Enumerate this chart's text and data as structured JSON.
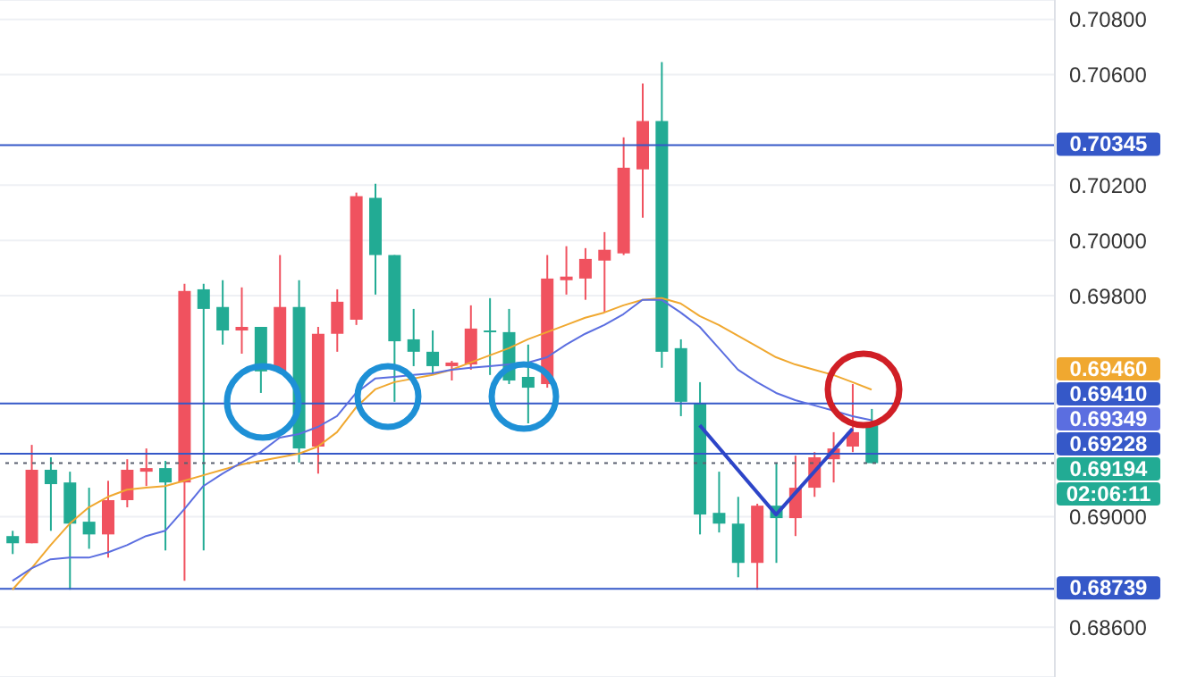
{
  "chart_data": {
    "type": "candlestick",
    "categories": [
      null,
      null,
      null,
      null,
      null,
      null,
      null,
      null,
      null,
      null,
      null,
      null,
      null,
      null,
      null,
      null,
      null,
      null,
      null,
      null,
      null,
      null,
      null,
      null,
      null,
      null,
      null,
      null,
      null,
      null,
      null,
      null,
      null,
      null,
      null,
      null,
      null,
      null,
      null,
      null,
      null,
      null,
      null,
      null,
      null,
      null
    ],
    "ohlc": [
      [
        0.6893,
        0.68949,
        0.68865,
        0.68904
      ],
      [
        0.68904,
        0.6926,
        0.68904,
        0.6917
      ],
      [
        0.6917,
        0.69215,
        0.68949,
        0.69118
      ],
      [
        0.69124,
        0.69163,
        0.68736,
        0.68975
      ],
      [
        0.68982,
        0.69105,
        0.68884,
        0.68936
      ],
      [
        0.68936,
        0.6913,
        0.68852,
        0.6906
      ],
      [
        0.6906,
        0.69208,
        0.69034,
        0.6917
      ],
      [
        0.69163,
        0.69247,
        0.69111,
        0.69176
      ],
      [
        0.69176,
        0.69202,
        0.68878,
        0.69124
      ],
      [
        0.69124,
        0.69843,
        0.68768,
        0.69817
      ],
      [
        0.69823,
        0.69843,
        0.68878,
        0.69752
      ],
      [
        0.69759,
        0.69856,
        0.69623,
        0.69674
      ],
      [
        0.69674,
        0.6983,
        0.6959,
        0.69687
      ],
      [
        0.69687,
        0.69687,
        0.69448,
        0.69526
      ],
      [
        0.69526,
        0.69947,
        0.69526,
        0.69759
      ],
      [
        0.69759,
        0.69856,
        0.69196,
        0.69247
      ],
      [
        0.69254,
        0.69687,
        0.69156,
        0.69662
      ],
      [
        0.69662,
        0.69823,
        0.69597,
        0.69778
      ],
      [
        0.69713,
        0.70173,
        0.69694,
        0.7016
      ],
      [
        0.70154,
        0.70205,
        0.69804,
        0.69947
      ],
      [
        0.69947,
        0.69947,
        0.69416,
        0.69635
      ],
      [
        0.69642,
        0.69752,
        0.69545,
        0.69597
      ],
      [
        0.69597,
        0.69674,
        0.69513,
        0.69545
      ],
      [
        0.69545,
        0.69564,
        0.69493,
        0.69558
      ],
      [
        0.69551,
        0.69765,
        0.69532,
        0.69681
      ],
      [
        0.69674,
        0.69791,
        0.69513,
        0.69668
      ],
      [
        0.69668,
        0.69752,
        0.6948,
        0.69493
      ],
      [
        0.69506,
        0.69623,
        0.69338,
        0.69467
      ],
      [
        0.6948,
        0.69947,
        0.69467,
        0.69862
      ],
      [
        0.69856,
        0.69979,
        0.69804,
        0.69869
      ],
      [
        0.69862,
        0.69972,
        0.69785,
        0.69933
      ],
      [
        0.69927,
        0.7003,
        0.69739,
        0.69966
      ],
      [
        0.69953,
        0.70373,
        0.69947,
        0.70263
      ],
      [
        0.70257,
        0.70568,
        0.70082,
        0.70432
      ],
      [
        0.70432,
        0.70645,
        0.69539,
        0.69597
      ],
      [
        0.6961,
        0.69642,
        0.69364,
        0.69416
      ],
      [
        0.69409,
        0.69487,
        0.68936,
        0.69008
      ],
      [
        0.69014,
        0.69163,
        0.68943,
        0.68975
      ],
      [
        0.68975,
        0.69072,
        0.68781,
        0.68833
      ],
      [
        0.68833,
        0.69047,
        0.68736,
        0.6904
      ],
      [
        0.6904,
        0.69196,
        0.68833,
        0.68995
      ],
      [
        0.68995,
        0.69221,
        0.6893,
        0.69105
      ],
      [
        0.69105,
        0.69234,
        0.69072,
        0.69215
      ],
      [
        0.69208,
        0.69306,
        0.69124,
        0.69247
      ],
      [
        0.69254,
        0.6948,
        0.69234,
        0.69306
      ],
      [
        0.69331,
        0.6939,
        0.69194,
        0.69194
      ]
    ],
    "colors": [
      "#22ab94",
      "#f0525f",
      "#22ab94",
      "#22ab94",
      "#22ab94",
      "#f0525f",
      "#f0525f",
      "#f0525f",
      "#22ab94",
      "#f0525f",
      "#22ab94",
      "#22ab94",
      "#f0525f",
      "#22ab94",
      "#f0525f",
      "#22ab94",
      "#f0525f",
      "#f0525f",
      "#f0525f",
      "#22ab94",
      "#22ab94",
      "#22ab94",
      "#22ab94",
      "#f0525f",
      "#f0525f",
      "#22ab94",
      "#22ab94",
      "#22ab94",
      "#f0525f",
      "#f0525f",
      "#f0525f",
      "#f0525f",
      "#f0525f",
      "#f0525f",
      "#22ab94",
      "#22ab94",
      "#22ab94",
      "#22ab94",
      "#22ab94",
      "#f0525f",
      "#22ab94",
      "#f0525f",
      "#f0525f",
      "#f0525f",
      "#f0525f",
      "#22ab94"
    ],
    "series": [
      {
        "type": "line",
        "color": "#f0a830",
        "values": [
          0.68736,
          0.68813,
          0.68897,
          0.68975,
          0.69034,
          0.69072,
          0.69098,
          0.69105,
          0.69111,
          0.6913,
          0.6915,
          0.6917,
          0.69189,
          0.69202,
          0.69215,
          0.69228,
          0.69254,
          0.69306,
          0.69396,
          0.69461,
          0.69487,
          0.695,
          0.69513,
          0.69532,
          0.69558,
          0.69584,
          0.6961,
          0.69642,
          0.69668,
          0.69694,
          0.6972,
          0.69739,
          0.69765,
          0.69785,
          0.69791,
          0.69772,
          0.69726,
          0.69694,
          0.69655,
          0.69616,
          0.69577,
          0.69551,
          0.69532,
          0.69513,
          0.69487,
          0.6946
        ]
      },
      {
        "type": "line",
        "color": "#5b6ee0",
        "values": [
          0.68768,
          0.68813,
          0.68846,
          0.68852,
          0.68852,
          0.68871,
          0.68897,
          0.6893,
          0.68949,
          0.69027,
          0.69111,
          0.69156,
          0.69196,
          0.69234,
          0.69286,
          0.69299,
          0.69325,
          0.69364,
          0.69448,
          0.695,
          0.69506,
          0.69513,
          0.69519,
          0.69532,
          0.69539,
          0.69545,
          0.69551,
          0.69558,
          0.69577,
          0.69623,
          0.69662,
          0.69694,
          0.69733,
          0.69785,
          0.69785,
          0.69739,
          0.69687,
          0.6961,
          0.69532,
          0.69487,
          0.69448,
          0.69422,
          0.69403,
          0.69384,
          0.69364,
          0.69349
        ]
      },
      {
        "type": "line",
        "color": "#2d45c8",
        "values": [
          null,
          null,
          null,
          null,
          null,
          null,
          null,
          null,
          null,
          null,
          null,
          null,
          null,
          null,
          null,
          null,
          null,
          null,
          null,
          null,
          null,
          null,
          null,
          null,
          null,
          null,
          null,
          null,
          null,
          null,
          null,
          null,
          null,
          null,
          null,
          null,
          0.69331,
          null,
          null,
          null,
          0.69008,
          null,
          null,
          null,
          0.69318,
          null
        ]
      }
    ],
    "ylim": [
      0.6842,
      0.7087
    ],
    "yticks": [
      {
        "value": 0.686,
        "label": "0.68600"
      },
      {
        "value": 0.69,
        "label": "0.69000"
      },
      {
        "value": 0.698,
        "label": "0.69800"
      },
      {
        "value": 0.7,
        "label": "0.70000"
      },
      {
        "value": 0.702,
        "label": "0.70200"
      },
      {
        "value": 0.706,
        "label": "0.70600"
      },
      {
        "value": 0.708,
        "label": "0.70800"
      }
    ],
    "grid": "y",
    "tick_labels": "y",
    "ref_lines": [
      {
        "axis": "y",
        "value": 0.70345,
        "label": "0.70345",
        "color": "#3558c8"
      },
      {
        "axis": "y",
        "value": 0.6941,
        "label": "0.69410",
        "color": "#3558c8"
      },
      {
        "axis": "y",
        "value": 0.69228,
        "label": "0.69228",
        "color": "#3558c8"
      },
      {
        "axis": "y",
        "value": 0.68739,
        "label": "0.68739",
        "color": "#3558c8"
      },
      {
        "axis": "y",
        "value": 0.69194,
        "label": "0.69194",
        "color": "#5a6070",
        "line_style": "dotted"
      }
    ],
    "annotations": [
      "0.69460",
      "0.69349",
      "02:06:11"
    ]
  }
}
